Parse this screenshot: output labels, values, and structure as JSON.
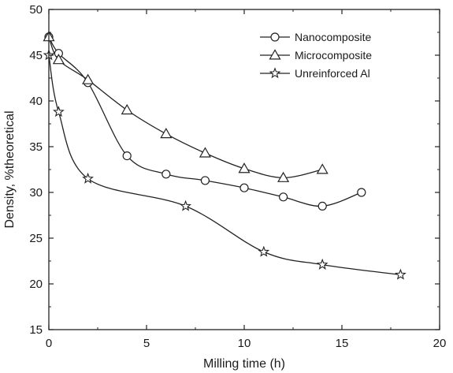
{
  "chart_data": {
    "type": "line",
    "xlabel": "Milling time (h)",
    "ylabel": "Density, %theoretical",
    "xlim": [
      0,
      20
    ],
    "ylim": [
      15,
      50
    ],
    "x_ticks": [
      0,
      5,
      10,
      15,
      20
    ],
    "y_ticks": [
      15,
      20,
      25,
      30,
      35,
      40,
      45,
      50
    ],
    "x_tick_labels": [
      "0",
      "5",
      "10",
      "15",
      "20"
    ],
    "y_tick_labels": [
      "15",
      "20",
      "25",
      "30",
      "35",
      "40",
      "45",
      "50"
    ],
    "grid": false,
    "legend_position": "top-right",
    "series": [
      {
        "name": "Nanocomposite",
        "marker": "circle",
        "x": [
          0,
          0.5,
          2,
          4,
          6,
          8,
          10,
          12,
          14,
          16
        ],
        "y": [
          47,
          45.2,
          42,
          34,
          32,
          31.3,
          30.5,
          29.5,
          28.5,
          30
        ]
      },
      {
        "name": "Microcomposite",
        "marker": "triangle",
        "x": [
          0,
          0.5,
          2,
          4,
          6,
          8,
          10,
          12,
          14
        ],
        "y": [
          47,
          44.5,
          42.3,
          39,
          36.4,
          34.3,
          32.6,
          31.6,
          32.5
        ]
      },
      {
        "name": "Unreinforced Al",
        "marker": "star",
        "x": [
          0,
          0.5,
          2,
          7,
          11,
          14,
          18
        ],
        "y": [
          45,
          38.8,
          31.5,
          28.5,
          23.5,
          22.1,
          21
        ]
      }
    ]
  }
}
